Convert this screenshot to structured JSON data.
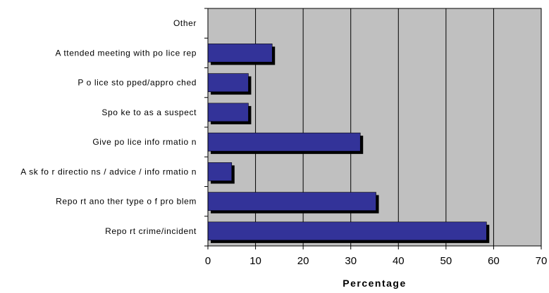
{
  "chart_data": {
    "type": "bar",
    "orientation": "horizontal",
    "categories": [
      "Other",
      "A ttended meeting with po lice rep",
      "P o lice sto pped/appro ched",
      "Spo ke to as a suspect",
      "Give po lice info rmatio n",
      "A sk fo r directio ns / advice / info rmatio n",
      "Repo rt ano ther type o f pro blem",
      "Repo rt crime/incident"
    ],
    "values": [
      0,
      13.5,
      8.5,
      8.5,
      32,
      5,
      35.3,
      58.5
    ],
    "xlabel": "Percentage",
    "ylabel": "",
    "title": "",
    "xlim": [
      0,
      70
    ],
    "xticks": [
      0,
      10,
      20,
      30,
      40,
      50,
      60,
      70
    ],
    "grid": "vertical",
    "legend": "none",
    "colors": {
      "bar": "#333399",
      "bar_shadow": "#000000",
      "plot_background": "#c0c0c0",
      "gridline": "#000000"
    }
  }
}
